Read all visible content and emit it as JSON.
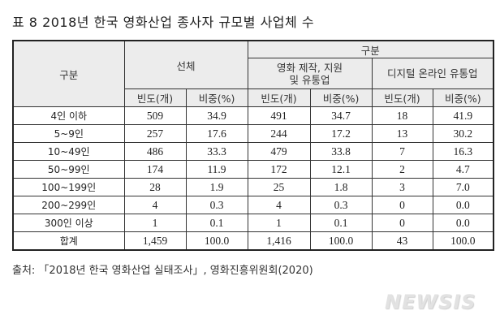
{
  "title": "표 8 2018년 한국 영화산업 종사자 규모별 사업체 수",
  "table": {
    "header_category": "구분",
    "header_total": "선체",
    "header_group": "구분",
    "header_film": "영화 제작, 지원\n및 유통업",
    "header_film_line1": "영화 제작, 지원",
    "header_film_line2": "및 유통업",
    "header_digital": "디지털 온라인 유통업",
    "sub_headers": [
      "빈도(개)",
      "비중(%)",
      "빈도(개)",
      "비중(%)",
      "빈도(개)",
      "비중(%)"
    ],
    "rows": [
      {
        "label": "4인 이하",
        "values": [
          "509",
          "34.9",
          "491",
          "34.7",
          "18",
          "41.9"
        ]
      },
      {
        "label": "5~9인",
        "values": [
          "257",
          "17.6",
          "244",
          "17.2",
          "13",
          "30.2"
        ]
      },
      {
        "label": "10~49인",
        "values": [
          "486",
          "33.3",
          "479",
          "33.8",
          "7",
          "16.3"
        ]
      },
      {
        "label": "50~99인",
        "values": [
          "174",
          "11.9",
          "172",
          "12.1",
          "2",
          "4.7"
        ]
      },
      {
        "label": "100~199인",
        "values": [
          "28",
          "1.9",
          "25",
          "1.8",
          "3",
          "7.0"
        ]
      },
      {
        "label": "200~299인",
        "values": [
          "4",
          "0.3",
          "4",
          "0.3",
          "0",
          "0.0"
        ]
      },
      {
        "label": "300인 이상",
        "values": [
          "1",
          "0.1",
          "1",
          "0.1",
          "0",
          "0.0"
        ]
      },
      {
        "label": "합계",
        "values": [
          "1,459",
          "100.0",
          "1,416",
          "100.0",
          "43",
          "100.0"
        ]
      }
    ]
  },
  "source": "출처: 「2018년 한국 영화산업 실태조사」, 영화진흥위원회(2020)",
  "watermark": "NEWSIS"
}
